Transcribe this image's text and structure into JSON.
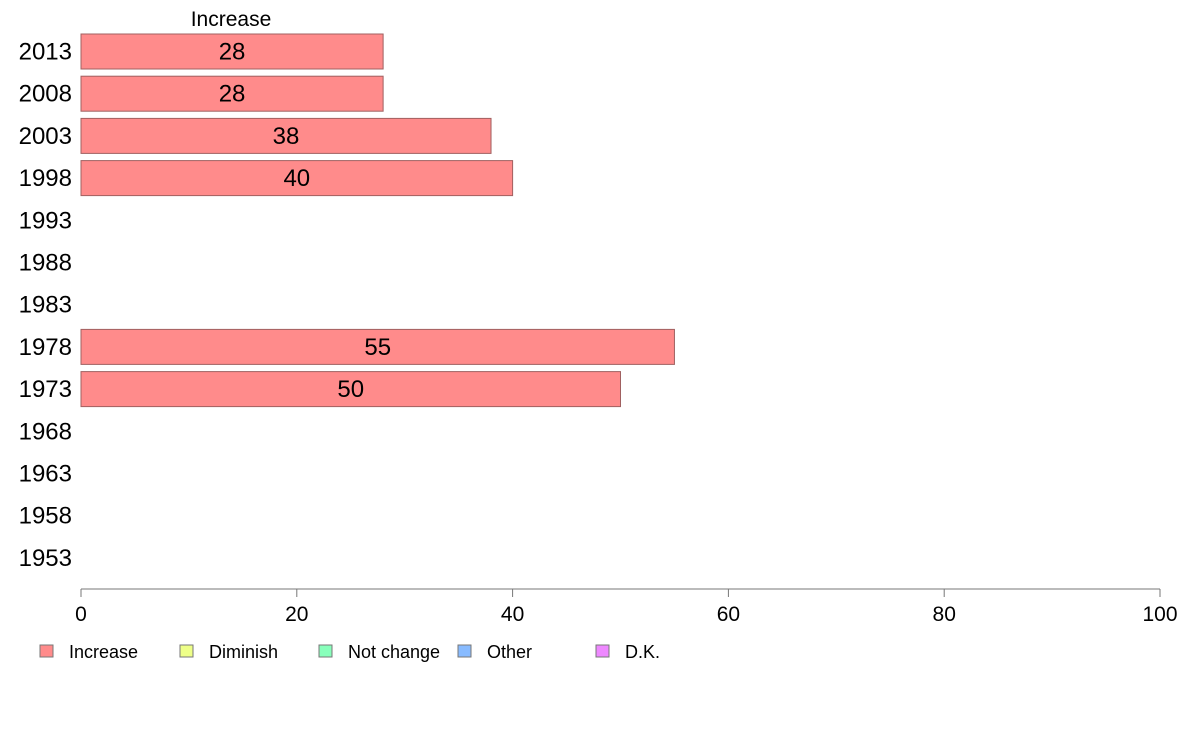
{
  "chart_data": {
    "type": "bar",
    "orientation": "horizontal",
    "panel_title": "Increase",
    "categories": [
      "2013",
      "2008",
      "2003",
      "1998",
      "1993",
      "1988",
      "1983",
      "1978",
      "1973",
      "1968",
      "1963",
      "1958",
      "1953"
    ],
    "series": [
      {
        "name": "Increase",
        "values": [
          28,
          28,
          38,
          40,
          null,
          null,
          null,
          55,
          50,
          null,
          null,
          null,
          null
        ]
      }
    ],
    "xlim": [
      0,
      100
    ],
    "xticks": [
      0,
      20,
      40,
      60,
      80,
      100
    ],
    "grid": false,
    "legend": {
      "placement": "bottom",
      "entries": [
        {
          "label": "Increase",
          "color": "#ff8b8b"
        },
        {
          "label": "Diminish",
          "color": "#eeff88"
        },
        {
          "label": "Not change",
          "color": "#88ffbb"
        },
        {
          "label": "Other",
          "color": "#88bbff"
        },
        {
          "label": "D.K.",
          "color": "#ee88ff"
        }
      ]
    },
    "bar_color": "#ff8b8b",
    "bar_stroke": "#a06060"
  }
}
